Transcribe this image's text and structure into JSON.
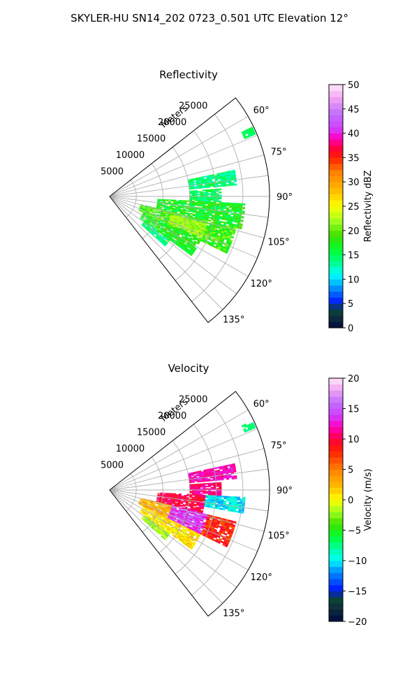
{
  "figure": {
    "suptitle": "SKYLER-HU  SN14_202  0723_0.501 UTC Elevation 12°"
  },
  "chart_data": [
    {
      "type": "heatmap",
      "subtype": "polar-sector radar scan",
      "title": "Reflectivity",
      "range_label": "Meters",
      "range_ticks": [
        5000,
        10000,
        15000,
        20000,
        25000
      ],
      "range_tick_labels": [
        "5000",
        "10000",
        "15000",
        "20000",
        "25000"
      ],
      "rmax": 30000,
      "azimuth_range_deg": [
        52,
        142
      ],
      "azimuth_ticks_deg": [
        60,
        75,
        90,
        105,
        120,
        135
      ],
      "azimuth_tick_labels": [
        "60°",
        "75°",
        "90°",
        "105°",
        "120°",
        "135°"
      ],
      "grid": true,
      "colorbar": {
        "label": "Reflectivity dBZ",
        "min": 0,
        "max": 50,
        "ticks": [
          0,
          5,
          10,
          15,
          20,
          25,
          30,
          35,
          40,
          45,
          50
        ],
        "tick_labels": [
          "0",
          "5",
          "10",
          "15",
          "20",
          "25",
          "30",
          "35",
          "40",
          "45",
          "50"
        ],
        "colormap": "pyart_HomeyerRainbow",
        "stops": [
          {
            "v": 0,
            "c": "#000a3c"
          },
          {
            "v": 2,
            "c": "#0d2a3e"
          },
          {
            "v": 4,
            "c": "#0b4a33"
          },
          {
            "v": 5,
            "c": "#0010ff"
          },
          {
            "v": 7,
            "c": "#0060ff"
          },
          {
            "v": 9,
            "c": "#00b4ff"
          },
          {
            "v": 11,
            "c": "#00ffff"
          },
          {
            "v": 13,
            "c": "#00ffa0"
          },
          {
            "v": 16,
            "c": "#00ff30"
          },
          {
            "v": 19,
            "c": "#40e000"
          },
          {
            "v": 22,
            "c": "#a0ff20"
          },
          {
            "v": 25,
            "c": "#ffff00"
          },
          {
            "v": 28,
            "c": "#ffc000"
          },
          {
            "v": 32,
            "c": "#ff8000"
          },
          {
            "v": 35,
            "c": "#ff2000"
          },
          {
            "v": 37,
            "c": "#ff0040"
          },
          {
            "v": 39,
            "c": "#ff00c0"
          },
          {
            "v": 41,
            "c": "#d040ff"
          },
          {
            "v": 44,
            "c": "#c070ff"
          },
          {
            "v": 47,
            "c": "#f0a0f0"
          },
          {
            "v": 50,
            "c": "#ffe8ff"
          }
        ]
      },
      "echoes": [
        {
          "az": [
            78,
            85
          ],
          "r": [
            15000,
            24000
          ],
          "value": 14,
          "variation": 2.5
        },
        {
          "az": [
            86,
            93
          ],
          "r": [
            15000,
            21000
          ],
          "value": 15,
          "variation": 2
        },
        {
          "az": [
            93,
            104
          ],
          "r": [
            9000,
            25500
          ],
          "value": 17,
          "variation": 3
        },
        {
          "az": [
            104,
            116
          ],
          "r": [
            6000,
            24500
          ],
          "value": 19,
          "variation": 3
        },
        {
          "az": [
            116,
            126
          ],
          "r": [
            7000,
            19000
          ],
          "value": 17,
          "variation": 2.5
        },
        {
          "az": [
            126,
            132
          ],
          "r": [
            8000,
            14000
          ],
          "value": 14,
          "variation": 2
        },
        {
          "az": [
            106,
            114
          ],
          "r": [
            12000,
            19000
          ],
          "value": 22,
          "variation": 1.5
        },
        {
          "az": [
            64,
            67
          ],
          "r": [
            27500,
            29800
          ],
          "value": 15,
          "variation": 1
        }
      ]
    },
    {
      "type": "heatmap",
      "subtype": "polar-sector radar scan",
      "title": "Velocity",
      "range_label": "Meters",
      "range_ticks": [
        5000,
        10000,
        15000,
        20000,
        25000
      ],
      "range_tick_labels": [
        "5000",
        "10000",
        "15000",
        "20000",
        "25000"
      ],
      "rmax": 30000,
      "azimuth_range_deg": [
        52,
        142
      ],
      "azimuth_ticks_deg": [
        60,
        75,
        90,
        105,
        120,
        135
      ],
      "azimuth_tick_labels": [
        "60°",
        "75°",
        "90°",
        "105°",
        "120°",
        "135°"
      ],
      "grid": true,
      "colorbar": {
        "label": "Velocity (m/s)",
        "min": -20,
        "max": 20,
        "ticks": [
          -20,
          -15,
          -10,
          -5,
          0,
          5,
          10,
          15,
          20
        ],
        "tick_labels": [
          "−20",
          "−15",
          "−10",
          "−5",
          "0",
          "5",
          "10",
          "15",
          "20"
        ],
        "colormap": "pyart_HomeyerRainbow",
        "stops": [
          {
            "v": -20,
            "c": "#000a3c"
          },
          {
            "v": -18,
            "c": "#0d2a3e"
          },
          {
            "v": -16,
            "c": "#0b4a33"
          },
          {
            "v": -15,
            "c": "#0010ff"
          },
          {
            "v": -13,
            "c": "#0060ff"
          },
          {
            "v": -11,
            "c": "#00b4ff"
          },
          {
            "v": -10,
            "c": "#00ffff"
          },
          {
            "v": -8,
            "c": "#00ffa0"
          },
          {
            "v": -6,
            "c": "#00ff30"
          },
          {
            "v": -4,
            "c": "#40e000"
          },
          {
            "v": -2,
            "c": "#a0ff20"
          },
          {
            "v": 0,
            "c": "#ffff00"
          },
          {
            "v": 2,
            "c": "#ffc000"
          },
          {
            "v": 5,
            "c": "#ff8000"
          },
          {
            "v": 8,
            "c": "#ff2000"
          },
          {
            "v": 10,
            "c": "#ff0040"
          },
          {
            "v": 12,
            "c": "#ff00c0"
          },
          {
            "v": 14,
            "c": "#d040ff"
          },
          {
            "v": 16,
            "c": "#c070ff"
          },
          {
            "v": 18,
            "c": "#f0a0f0"
          },
          {
            "v": 20,
            "c": "#ffe8ff"
          }
        ]
      },
      "echoes": [
        {
          "az": [
            78,
            85
          ],
          "r": [
            15000,
            24000
          ],
          "value": 12,
          "variation": 1.5
        },
        {
          "az": [
            86,
            93
          ],
          "r": [
            15000,
            21000
          ],
          "value": 11,
          "variation": 1.5
        },
        {
          "az": [
            93,
            100
          ],
          "r": [
            18000,
            25500
          ],
          "value": -10,
          "variation": 1.5
        },
        {
          "az": [
            93,
            104
          ],
          "r": [
            9000,
            18000
          ],
          "value": 10,
          "variation": 2
        },
        {
          "az": [
            104,
            116
          ],
          "r": [
            12000,
            19000
          ],
          "value": 14,
          "variation": 2
        },
        {
          "az": [
            104,
            116
          ],
          "r": [
            19000,
            24500
          ],
          "value": 8,
          "variation": 2
        },
        {
          "az": [
            104,
            116
          ],
          "r": [
            6000,
            12000
          ],
          "value": 3,
          "variation": 2
        },
        {
          "az": [
            116,
            126
          ],
          "r": [
            7000,
            19000
          ],
          "value": 1,
          "variation": 2
        },
        {
          "az": [
            126,
            132
          ],
          "r": [
            8000,
            14000
          ],
          "value": -2,
          "variation": 1.5
        },
        {
          "az": [
            64,
            67
          ],
          "r": [
            27500,
            29800
          ],
          "value": -7,
          "variation": 1
        }
      ]
    }
  ]
}
